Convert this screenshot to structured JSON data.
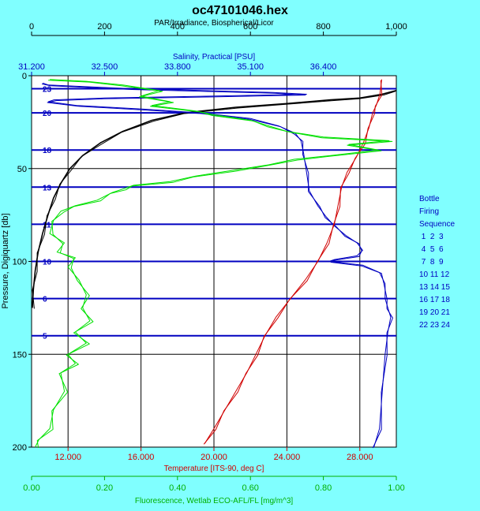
{
  "title": "oc47101046.hex",
  "legend": {
    "title": [
      "Bottle",
      "Firing",
      "Sequence"
    ],
    "rows": [
      " 1  2  3",
      " 4  5  6",
      " 7  8  9",
      "10 11 12",
      "13 14 15",
      "16 17 18",
      "19 20 21",
      "22 23 24"
    ]
  },
  "colors": {
    "background": "#80ffff",
    "plot_background": "#ffffff",
    "par": "#000000",
    "salinity": "#0000c0",
    "temperature": "#d00000",
    "fluorescence": "#00e000",
    "bottle_line": "#0000c0"
  },
  "chart_data": {
    "type": "line",
    "title": "oc47101046.hex",
    "ylabel": "Pressure, Digiquartz [db]",
    "ylim": [
      0,
      200
    ],
    "y_inverted": true,
    "yticks": [
      "0",
      "50",
      "100",
      "150",
      "200"
    ],
    "grid": true,
    "legend_position": "right",
    "axes": {
      "par": {
        "label": "PAR/Irradiance, Biospherical/Licor",
        "position": "top",
        "range": [
          0,
          1000
        ],
        "ticks": [
          "0",
          "200",
          "400",
          "600",
          "800",
          "1,000"
        ]
      },
      "salinity": {
        "label": "Salinity, Practical [PSU]",
        "position": "top-inner",
        "range": [
          31.2,
          37.7
        ],
        "ticks": [
          "31.200",
          "32.500",
          "33.800",
          "35.100",
          "36.400"
        ]
      },
      "temperature": {
        "label": "Temperature [ITS-90, deg C]",
        "position": "bottom",
        "range": [
          10,
          30
        ],
        "ticks": [
          "12.000",
          "16.000",
          "20.000",
          "24.000",
          "28.000"
        ]
      },
      "fluorescence": {
        "label": "Fluorescence, Wetlab ECO-AFL/FL [mg/m^3]",
        "position": "bottom-outer",
        "range": [
          0,
          1
        ],
        "ticks": [
          "0.00",
          "0.20",
          "0.40",
          "0.60",
          "0.80",
          "1.00"
        ]
      }
    },
    "bottles": [
      {
        "label": "23",
        "pressure": 7
      },
      {
        "label": "20",
        "pressure": 20
      },
      {
        "label": "18",
        "pressure": 40
      },
      {
        "label": "13",
        "pressure": 60
      },
      {
        "label": "11",
        "pressure": 80
      },
      {
        "label": "10",
        "pressure": 100
      },
      {
        "label": "6",
        "pressure": 120
      },
      {
        "label": "5",
        "pressure": 140
      }
    ],
    "series": [
      {
        "key": "par",
        "axis": "par",
        "points": [
          [
            1000,
            8
          ],
          [
            960,
            10
          ],
          [
            900,
            12
          ],
          [
            820,
            13
          ],
          [
            700,
            15
          ],
          [
            560,
            17
          ],
          [
            420,
            20
          ],
          [
            330,
            24
          ],
          [
            250,
            30
          ],
          [
            190,
            36
          ],
          [
            140,
            43
          ],
          [
            105,
            50
          ],
          [
            80,
            58
          ],
          [
            60,
            66
          ],
          [
            45,
            75
          ],
          [
            30,
            85
          ],
          [
            18,
            95
          ],
          [
            10,
            105
          ],
          [
            5,
            115
          ],
          [
            2,
            125
          ]
        ]
      },
      {
        "key": "salinity",
        "axis": "salinity",
        "points": [
          [
            31.4,
            4
          ],
          [
            31.5,
            5
          ],
          [
            33.0,
            7
          ],
          [
            35.5,
            9
          ],
          [
            36.1,
            10
          ],
          [
            34.4,
            11
          ],
          [
            32.5,
            12
          ],
          [
            31.6,
            13
          ],
          [
            31.5,
            14
          ],
          [
            32.0,
            16
          ],
          [
            33.2,
            18
          ],
          [
            34.2,
            20
          ],
          [
            35.1,
            23
          ],
          [
            35.6,
            27
          ],
          [
            35.9,
            31
          ],
          [
            36.0,
            35
          ],
          [
            36.05,
            42
          ],
          [
            36.1,
            52
          ],
          [
            36.15,
            62
          ],
          [
            36.3,
            70
          ],
          [
            36.45,
            76
          ],
          [
            36.6,
            81
          ],
          [
            36.8,
            86
          ],
          [
            37.0,
            90
          ],
          [
            37.1,
            94
          ],
          [
            37.0,
            97
          ],
          [
            36.6,
            99
          ],
          [
            36.5,
            100
          ],
          [
            37.1,
            102
          ],
          [
            37.4,
            106
          ],
          [
            37.5,
            112
          ],
          [
            37.5,
            120
          ],
          [
            37.55,
            125
          ],
          [
            37.6,
            130
          ],
          [
            37.55,
            138
          ],
          [
            37.5,
            150
          ],
          [
            37.45,
            170
          ],
          [
            37.4,
            190
          ],
          [
            37.3,
            200
          ]
        ]
      },
      {
        "key": "temperature",
        "axis": "temperature",
        "points": [
          [
            29.2,
            2
          ],
          [
            29.1,
            10
          ],
          [
            28.9,
            16
          ],
          [
            28.7,
            20
          ],
          [
            28.5,
            28
          ],
          [
            28.2,
            36
          ],
          [
            27.8,
            44
          ],
          [
            27.3,
            52
          ],
          [
            27.0,
            60
          ],
          [
            26.8,
            70
          ],
          [
            26.6,
            80
          ],
          [
            26.2,
            90
          ],
          [
            25.7,
            100
          ],
          [
            25.0,
            110
          ],
          [
            24.2,
            120
          ],
          [
            23.4,
            130
          ],
          [
            22.8,
            140
          ],
          [
            22.3,
            150
          ],
          [
            21.8,
            160
          ],
          [
            21.2,
            170
          ],
          [
            20.6,
            180
          ],
          [
            20.0,
            190
          ],
          [
            19.5,
            198
          ]
        ]
      },
      {
        "key": "fluorescence",
        "axis": "fluorescence",
        "points": [
          [
            0.05,
            2
          ],
          [
            0.15,
            3
          ],
          [
            0.25,
            5
          ],
          [
            0.35,
            8
          ],
          [
            0.3,
            11
          ],
          [
            0.38,
            14
          ],
          [
            0.33,
            16
          ],
          [
            0.45,
            19
          ],
          [
            0.5,
            21
          ],
          [
            0.6,
            24
          ],
          [
            0.65,
            27
          ],
          [
            0.7,
            30
          ],
          [
            0.8,
            33
          ],
          [
            0.98,
            35
          ],
          [
            0.87,
            37
          ],
          [
            0.95,
            40
          ],
          [
            0.82,
            43
          ],
          [
            0.72,
            45
          ],
          [
            0.65,
            48
          ],
          [
            0.55,
            51
          ],
          [
            0.45,
            54
          ],
          [
            0.38,
            57
          ],
          [
            0.28,
            59
          ],
          [
            0.25,
            61
          ],
          [
            0.22,
            63
          ],
          [
            0.18,
            67
          ],
          [
            0.12,
            70
          ],
          [
            0.08,
            73
          ],
          [
            0.06,
            78
          ],
          [
            0.05,
            85
          ],
          [
            0.09,
            90
          ],
          [
            0.07,
            95
          ],
          [
            0.12,
            98
          ],
          [
            0.1,
            103
          ],
          [
            0.13,
            110
          ],
          [
            0.15,
            118
          ],
          [
            0.14,
            125
          ],
          [
            0.16,
            132
          ],
          [
            0.12,
            138
          ],
          [
            0.15,
            144
          ],
          [
            0.1,
            150
          ],
          [
            0.12,
            155
          ],
          [
            0.08,
            160
          ],
          [
            0.09,
            170
          ],
          [
            0.06,
            180
          ],
          [
            0.05,
            190
          ],
          [
            0.02,
            196
          ],
          [
            0.01,
            200
          ]
        ]
      }
    ]
  }
}
